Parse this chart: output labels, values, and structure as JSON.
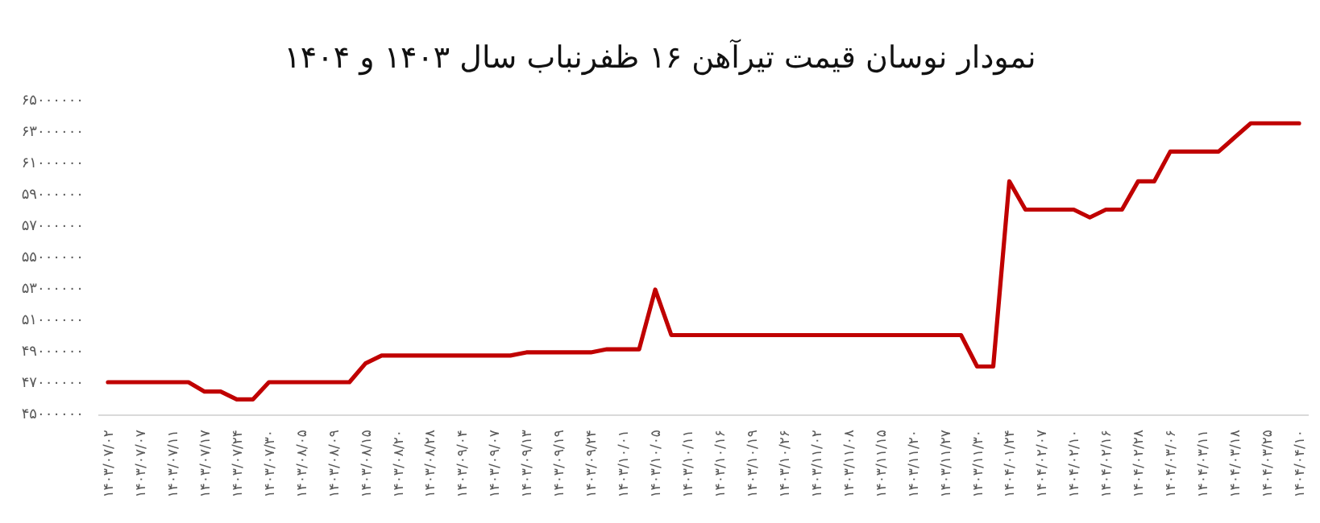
{
  "chart_data": {
    "type": "line",
    "title": "نمودار نوسان قیمت تیرآهن ۱۶ ظفرنباب سال ۱۴۰۳ و ۱۴۰۴",
    "categories": [
      "۱۴۰۳/۰۷/۰۲",
      null,
      "۱۴۰۳/۰۷/۰۷",
      null,
      "۱۴۰۳/۰۷/۱۱",
      null,
      "۱۴۰۳/۰۷/۱۷",
      null,
      "۱۴۰۳/۰۷/۲۴",
      null,
      "۱۴۰۳/۰۷/۳۰",
      null,
      "۱۴۰۳/۰۸/۰۵",
      null,
      "۱۴۰۳/۰۸/۰۹",
      null,
      "۱۴۰۳/۰۸/۱۵",
      null,
      "۱۴۰۳/۰۸/۲۰",
      null,
      "۱۴۰۳/۰۸/۲۸",
      null,
      "۱۴۰۳/۰۹/۰۴",
      null,
      "۱۴۰۳/۰۹/۰۷",
      null,
      "۱۴۰۳/۰۹/۱۳",
      null,
      "۱۴۰۳/۰۹/۱۹",
      null,
      "۱۴۰۳/۰۹/۲۴",
      null,
      "۱۴۰۳/۱۰/۰۱",
      null,
      "۱۴۰۳/۱۰/۰۵",
      null,
      "۱۴۰۳/۱۰/۱۱",
      null,
      "۱۴۰۳/۱۰/۱۶",
      null,
      "۱۴۰۳/۱۰/۱۹",
      null,
      "۱۴۰۳/۱۰/۲۶",
      null,
      "۱۴۰۳/۱۱/۰۲",
      null,
      "۱۴۰۳/۱۱/۰۸",
      null,
      "۱۴۰۳/۱۱/۱۵",
      null,
      "۱۴۰۳/۱۱/۲۰",
      null,
      "۱۴۰۳/۱۱/۲۷",
      null,
      "۱۴۰۳/۱۱/۳۰",
      null,
      "۱۴۰۴/۰۱/۲۴",
      null,
      "۱۴۰۴/۰۲/۰۷",
      null,
      "۱۴۰۴/۰۲/۱۰",
      null,
      "۱۴۰۴/۰۲/۱۶",
      null,
      "۱۴۰۴/۰۲/۲۸",
      null,
      "۱۴۰۴/۰۳/۰۶",
      null,
      "۱۴۰۴/۰۳/۱۱",
      null,
      "۱۴۰۴/۰۳/۱۸",
      null,
      "۱۴۰۴/۰۳/۲۵",
      null,
      "۱۴۰۴/۰۴/۱۰"
    ],
    "values": [
      47000000,
      47000000,
      47000000,
      47000000,
      47000000,
      47000000,
      46400000,
      46400000,
      45900000,
      45900000,
      47000000,
      47000000,
      47000000,
      47000000,
      47000000,
      47000000,
      48200000,
      48700000,
      48700000,
      48700000,
      48700000,
      48700000,
      48700000,
      48700000,
      48700000,
      48700000,
      48900000,
      48900000,
      48900000,
      48900000,
      48900000,
      49100000,
      49100000,
      49100000,
      52900000,
      50000000,
      50000000,
      50000000,
      50000000,
      50000000,
      50000000,
      50000000,
      50000000,
      50000000,
      50000000,
      50000000,
      50000000,
      50000000,
      50000000,
      50000000,
      50000000,
      50000000,
      50000000,
      50000000,
      48000000,
      48000000,
      59800000,
      58000000,
      58000000,
      58000000,
      58000000,
      57500000,
      58000000,
      58000000,
      59800000,
      59800000,
      61700000,
      61700000,
      61700000,
      61700000,
      62600000,
      63500000,
      63500000,
      63500000,
      63500000
    ],
    "color": "#c00000",
    "ylim": [
      45000000,
      65000000
    ],
    "yticks": [
      {
        "value": 45000000,
        "label": "۴۵۰۰۰۰۰۰"
      },
      {
        "value": 47000000,
        "label": "۴۷۰۰۰۰۰۰"
      },
      {
        "value": 49000000,
        "label": "۴۹۰۰۰۰۰۰"
      },
      {
        "value": 51000000,
        "label": "۵۱۰۰۰۰۰۰"
      },
      {
        "value": 53000000,
        "label": "۵۳۰۰۰۰۰۰"
      },
      {
        "value": 55000000,
        "label": "۵۵۰۰۰۰۰۰"
      },
      {
        "value": 57000000,
        "label": "۵۷۰۰۰۰۰۰"
      },
      {
        "value": 59000000,
        "label": "۵۹۰۰۰۰۰۰"
      },
      {
        "value": 61000000,
        "label": "۶۱۰۰۰۰۰۰"
      },
      {
        "value": 63000000,
        "label": "۶۳۰۰۰۰۰۰"
      },
      {
        "value": 65000000,
        "label": "۶۵۰۰۰۰۰۰"
      }
    ]
  }
}
